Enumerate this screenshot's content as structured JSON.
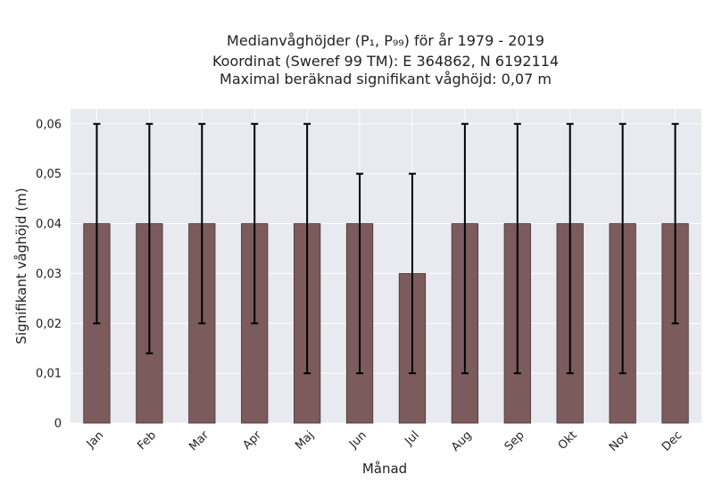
{
  "chart_data": {
    "type": "bar",
    "title_lines": [
      "Medianvåghöjder (P₁, P₉₉) för år 1979 - 2019",
      "Koordinat (Sweref 99 TM): E 364862, N 6192114",
      "Maximal beräknad signifikant våghöjd: 0,07 m"
    ],
    "xlabel": "Månad",
    "ylabel": "Signifikant våghöjd (m)",
    "categories": [
      "Jan",
      "Feb",
      "Mar",
      "Apr",
      "Maj",
      "Jun",
      "Jul",
      "Aug",
      "Sep",
      "Okt",
      "Nov",
      "Dec"
    ],
    "values": [
      0.04,
      0.04,
      0.04,
      0.04,
      0.04,
      0.04,
      0.03,
      0.04,
      0.04,
      0.04,
      0.04,
      0.04
    ],
    "p1": [
      0.02,
      0.014,
      0.02,
      0.02,
      0.01,
      0.01,
      0.01,
      0.01,
      0.01,
      0.01,
      0.01,
      0.02
    ],
    "p99": [
      0.06,
      0.06,
      0.06,
      0.06,
      0.06,
      0.05,
      0.05,
      0.06,
      0.06,
      0.06,
      0.06,
      0.06
    ],
    "ylim": [
      0,
      0.063
    ],
    "yticks": [
      0,
      0.01,
      0.02,
      0.03,
      0.04,
      0.05,
      0.06
    ],
    "ytick_labels": [
      "0",
      "0,01",
      "0,02",
      "0,03",
      "0,04",
      "0,05",
      "0,06"
    ],
    "grid": true,
    "colors": {
      "bar": "#7b5b5b",
      "bar_edge": "#4a3434",
      "error": "#000000",
      "plot_bg": "#e9e9f0",
      "grid": "#ffffff"
    }
  }
}
